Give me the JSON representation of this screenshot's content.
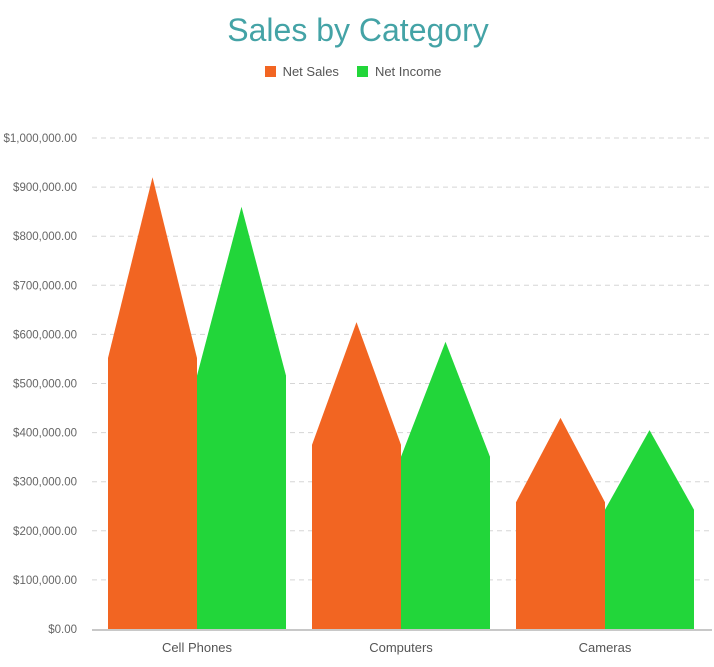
{
  "chart_data": {
    "type": "bar",
    "bar_shape": "pointed",
    "title": "Sales by Category",
    "categories": [
      "Cell Phones",
      "Computers",
      "Cameras"
    ],
    "series": [
      {
        "name": "Net Sales",
        "color": "#f26522",
        "values": [
          920000,
          625000,
          430000
        ]
      },
      {
        "name": "Net Income",
        "color": "#22d63a",
        "values": [
          860000,
          585000,
          405000
        ]
      }
    ],
    "xlabel": "",
    "ylabel": "",
    "ylim": [
      0,
      1000000
    ],
    "y_ticks": [
      0,
      100000,
      200000,
      300000,
      400000,
      500000,
      600000,
      700000,
      800000,
      900000,
      1000000
    ],
    "y_tick_labels": [
      "$0.00",
      "$100,000.00",
      "$200,000.00",
      "$300,000.00",
      "$400,000.00",
      "$500,000.00",
      "$600,000.00",
      "$700,000.00",
      "$800,000.00",
      "$900,000.00",
      "$1,000,000.00"
    ],
    "grid": true,
    "legend_position": "top-center"
  },
  "colors": {
    "title": "#44a3a6",
    "grid": "#d5d5d5",
    "axis": "#c8c8c8"
  }
}
